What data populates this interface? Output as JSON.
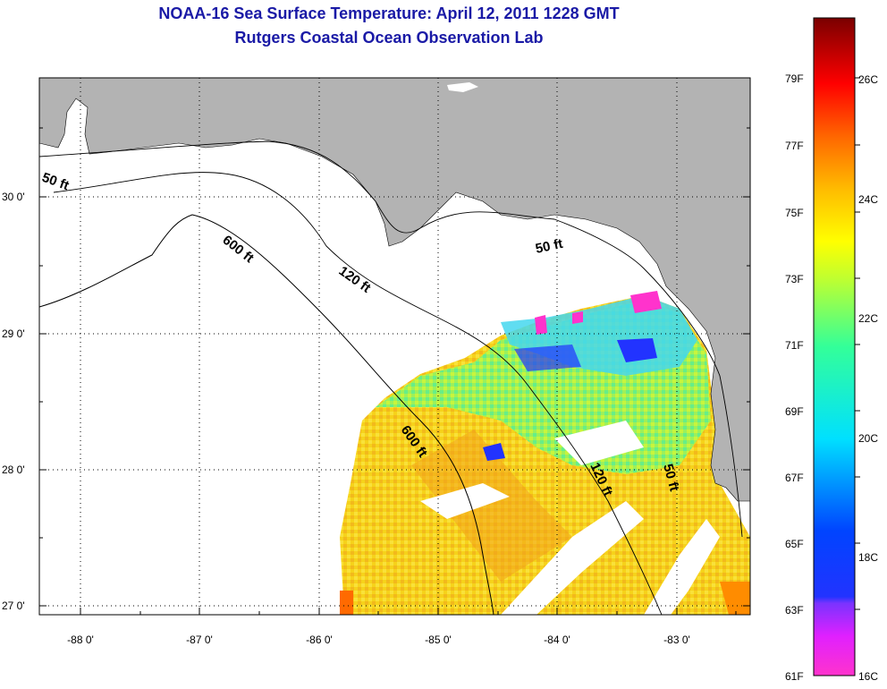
{
  "title": "NOAA-16 Sea Surface Temperature:  April 12, 2011 1228 GMT",
  "subtitle": "Rutgers Coastal Ocean Observation Lab",
  "map": {
    "lat_labels": [
      "30 0'",
      "29 0'",
      "28 0'",
      "27 0'"
    ],
    "lat_values": [
      30,
      29,
      28,
      27
    ],
    "lon_labels": [
      "-88 0'",
      "-87 0'",
      "-86 0'",
      "-85 0'",
      "-84 0'",
      "-83 0'"
    ],
    "lon_values": [
      -88,
      -87,
      -86,
      -85,
      -84,
      -83
    ],
    "contour_labels": [
      "50 ft",
      "600 ft",
      "120 ft",
      "50 ft",
      "600 ft",
      "120 ft",
      "50 ft"
    ],
    "colors": {
      "land": "#b3b3b3",
      "ocean_nodata": "#ffffff"
    }
  },
  "colorbar": {
    "f_labels": [
      "79F",
      "77F",
      "75F",
      "73F",
      "71F",
      "69F",
      "67F",
      "65F",
      "63F",
      "61F"
    ],
    "c_labels": [
      "26C",
      "24C",
      "22C",
      "20C",
      "18C",
      "16C"
    ]
  }
}
